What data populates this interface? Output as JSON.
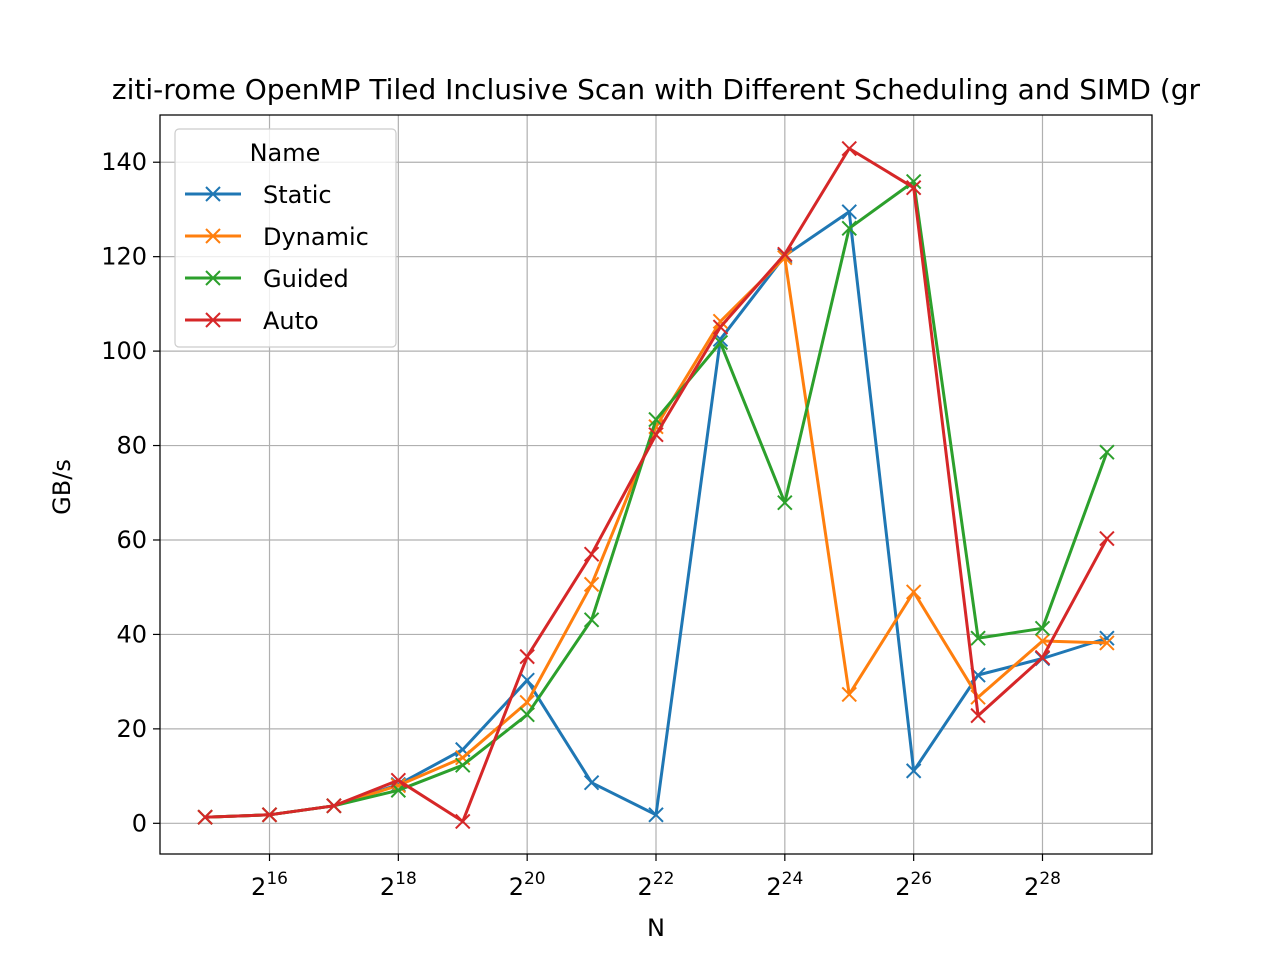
{
  "chart_data": {
    "type": "line",
    "title": "ziti-rome OpenMP Tiled Inclusive Scan with Different Scheduling and SIMD (gr",
    "xlabel": "N",
    "ylabel": "GB/s",
    "x_scale": "log2",
    "x": [
      32768,
      65536,
      131072,
      262144,
      524288,
      1048576,
      2097152,
      4194304,
      8388608,
      16777216,
      33554432,
      67108864,
      134217728,
      268435456,
      536870912
    ],
    "x_tick_values": [
      65536,
      262144,
      1048576,
      4194304,
      16777216,
      67108864,
      268435456
    ],
    "x_tick_labels": [
      {
        "base": "2",
        "exp": "16"
      },
      {
        "base": "2",
        "exp": "18"
      },
      {
        "base": "2",
        "exp": "20"
      },
      {
        "base": "2",
        "exp": "22"
      },
      {
        "base": "2",
        "exp": "24"
      },
      {
        "base": "2",
        "exp": "26"
      },
      {
        "base": "2",
        "exp": "28"
      }
    ],
    "y_ticks": [
      "0",
      "20",
      "40",
      "60",
      "80",
      "100",
      "120",
      "140"
    ],
    "ylim": [
      -6.5,
      150
    ],
    "grid": true,
    "legend_title": "Name",
    "legend_position": "upper-left",
    "series": [
      {
        "name": "Static",
        "color": "#1f77b4",
        "values": [
          1.3,
          1.8,
          3.7,
          8.2,
          15.6,
          30.3,
          8.6,
          1.8,
          102.5,
          120.2,
          129.5,
          11.1,
          31.4,
          34.9,
          39.2
        ]
      },
      {
        "name": "Dynamic",
        "color": "#ff7f0e",
        "values": [
          1.3,
          1.8,
          3.7,
          8.0,
          13.9,
          25.6,
          50.6,
          84.0,
          106.3,
          119.8,
          27.3,
          49.0,
          26.7,
          38.6,
          38.2
        ]
      },
      {
        "name": "Guided",
        "color": "#2ca02c",
        "values": [
          1.3,
          1.8,
          3.7,
          7.0,
          12.3,
          23.0,
          43.1,
          85.5,
          101.8,
          67.9,
          126.0,
          135.9,
          39.2,
          41.3,
          78.6
        ]
      },
      {
        "name": "Auto",
        "color": "#d62728",
        "values": [
          1.3,
          1.8,
          3.7,
          9.1,
          0.4,
          35.3,
          57.0,
          82.3,
          105.1,
          120.5,
          142.9,
          134.6,
          22.8,
          35.1,
          60.3
        ]
      }
    ]
  }
}
